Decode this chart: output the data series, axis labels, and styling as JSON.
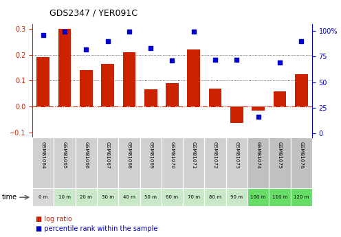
{
  "title": "GDS2347 / YER091C",
  "samples": [
    "GSM81064",
    "GSM81065",
    "GSM81066",
    "GSM81067",
    "GSM81068",
    "GSM81069",
    "GSM81070",
    "GSM81071",
    "GSM81072",
    "GSM81073",
    "GSM81074",
    "GSM81075",
    "GSM81076"
  ],
  "time_labels": [
    "0 m",
    "10 m",
    "20 m",
    "30 m",
    "40 m",
    "50 m",
    "60 m",
    "70 m",
    "80 m",
    "90 m",
    "100 m",
    "110 m",
    "120 m"
  ],
  "log_ratio": [
    0.19,
    0.3,
    0.14,
    0.165,
    0.21,
    0.065,
    0.09,
    0.22,
    0.07,
    -0.065,
    -0.015,
    0.057,
    0.125
  ],
  "percentile_rank": [
    96,
    99,
    82,
    90,
    99,
    83,
    71,
    99,
    72,
    72,
    16,
    69,
    90
  ],
  "ylim_left": [
    -0.12,
    0.32
  ],
  "ylim_right": [
    -4.0,
    107.0
  ],
  "yticks_left": [
    -0.1,
    0.0,
    0.1,
    0.2,
    0.3
  ],
  "yticks_right": [
    0,
    25,
    50,
    75,
    100
  ],
  "ytick_labels_right": [
    "0",
    "25",
    "50",
    "75",
    "100%"
  ],
  "bar_color": "#cc2200",
  "scatter_color": "#0000cc",
  "zero_line_color": "#cc2200",
  "grid_color": "#000000",
  "bg_color": "#ffffff",
  "time_row_colors": [
    "#d8d8d8",
    "#c8e8c8",
    "#c8e8c8",
    "#c8e8c8",
    "#c8e8c8",
    "#c8e8c8",
    "#c8e8c8",
    "#c8e8c8",
    "#c8e8c8",
    "#c8e8c8",
    "#66dd66",
    "#66dd66",
    "#66dd66"
  ],
  "sample_row_colors": [
    "#d0d0d0",
    "#d0d0d0",
    "#d0d0d0",
    "#d0d0d0",
    "#d0d0d0",
    "#d0d0d0",
    "#d0d0d0",
    "#d0d0d0",
    "#d0d0d0",
    "#d0d0d0",
    "#c0c0c0",
    "#c0c0c0",
    "#c0c0c0"
  ],
  "legend_bar_color": "#cc2200",
  "legend_scatter_color": "#0000cc"
}
